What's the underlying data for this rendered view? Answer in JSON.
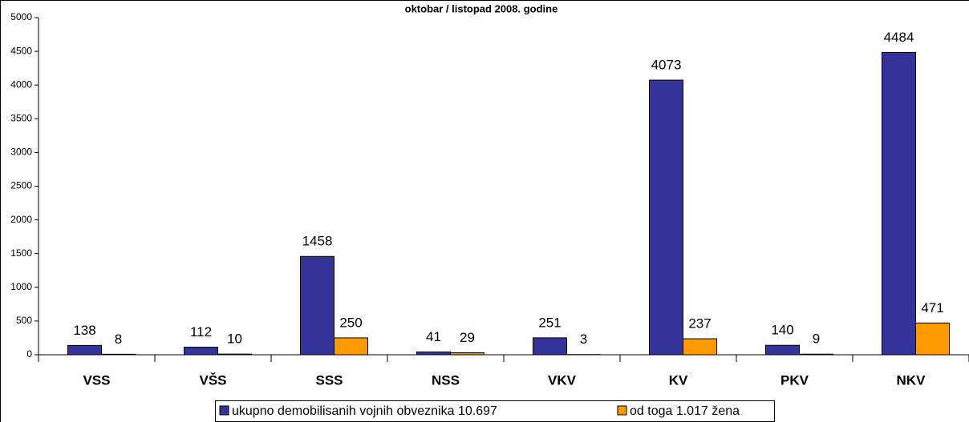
{
  "chart_data": {
    "type": "bar",
    "title": "oktobar / listopad 2008. godine",
    "categories": [
      "VSS",
      "VŠS",
      "SSS",
      "NSS",
      "VKV",
      "KV",
      "PKV",
      "NKV"
    ],
    "series": [
      {
        "name": "ukupno demobilisanih vojnih obveznika 10.697",
        "color": "#333399",
        "values": [
          138,
          112,
          1458,
          41,
          251,
          4073,
          140,
          4484
        ]
      },
      {
        "name": "od toga 1.017 žena",
        "color": "#ff9900",
        "values": [
          8,
          10,
          250,
          29,
          3,
          237,
          9,
          471
        ]
      }
    ],
    "ylim": [
      0,
      5000
    ],
    "yticks": [
      0,
      500,
      1000,
      1500,
      2000,
      2500,
      3000,
      3500,
      4000,
      4500,
      5000
    ],
    "legend": "bottom"
  }
}
